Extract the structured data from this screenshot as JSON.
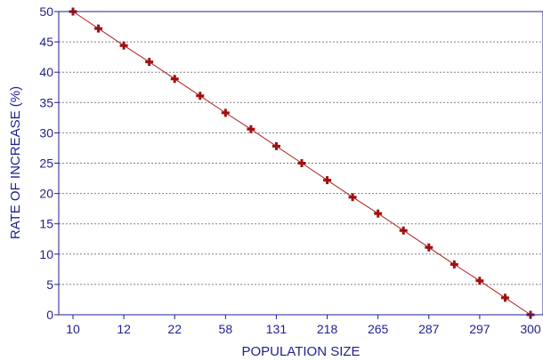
{
  "chart_data": {
    "type": "line",
    "title": "",
    "xlabel": "POPULATION SIZE",
    "ylabel": "RATE OF INCREASE (%)",
    "ylim": [
      0,
      50
    ],
    "y_ticks": [
      0,
      5,
      10,
      15,
      20,
      25,
      30,
      35,
      40,
      45,
      50
    ],
    "x_tick_labels": [
      "10",
      "12",
      "22",
      "58",
      "131",
      "218",
      "265",
      "287",
      "297",
      "300"
    ],
    "grid": "horizontal dotted",
    "colors": {
      "line": "#b02020",
      "marker": "#a01010",
      "axis": "#1f1f8f",
      "grid": "#808080"
    },
    "series": [
      {
        "x": [
          0,
          1,
          2,
          3,
          4,
          5,
          6,
          7,
          8,
          9,
          10,
          11,
          12,
          13,
          14,
          15,
          16,
          17,
          18
        ],
        "values": [
          50,
          47.2,
          44.4,
          41.7,
          38.9,
          36.1,
          33.3,
          30.6,
          27.8,
          25.0,
          22.2,
          19.4,
          16.7,
          13.9,
          11.1,
          8.3,
          5.6,
          2.8,
          0
        ]
      }
    ]
  }
}
